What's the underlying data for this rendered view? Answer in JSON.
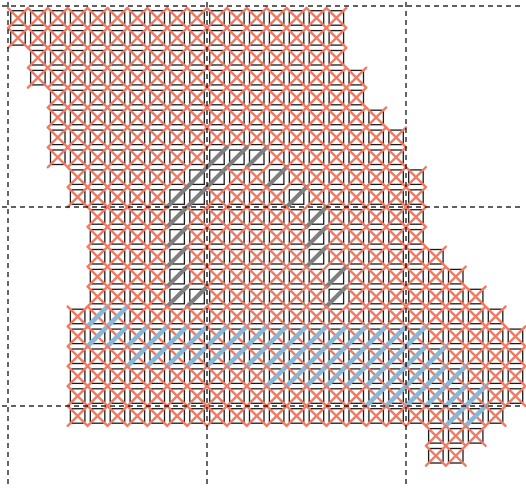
{
  "pattern": {
    "grid_lines": "dashed",
    "colors": {
      "background": "#ffffff",
      "cell_border": "#1a1a1a",
      "guide_line": "#000000",
      "stitch_main": "#f07a63",
      "stitch_shadow": "#7f7f7f",
      "stitch_river": "#8db6d4"
    },
    "legend": [],
    "rows": [
      {
        "row": 0,
        "start_col": 0,
        "end_col": 16
      },
      {
        "row": 1,
        "start_col": 0,
        "end_col": 16
      },
      {
        "row": 2,
        "start_col": 1,
        "end_col": 16
      },
      {
        "row": 3,
        "start_col": 1,
        "end_col": 17
      },
      {
        "row": 4,
        "start_col": 2,
        "end_col": 17
      },
      {
        "row": 5,
        "start_col": 2,
        "end_col": 18
      },
      {
        "row": 6,
        "start_col": 2,
        "end_col": 19
      },
      {
        "row": 7,
        "start_col": 2,
        "end_col": 19
      },
      {
        "row": 8,
        "start_col": 3,
        "end_col": 20
      },
      {
        "row": 9,
        "start_col": 3,
        "end_col": 20
      },
      {
        "row": 10,
        "start_col": 4,
        "end_col": 20
      },
      {
        "row": 11,
        "start_col": 4,
        "end_col": 20
      },
      {
        "row": 12,
        "start_col": 4,
        "end_col": 21
      },
      {
        "row": 13,
        "start_col": 4,
        "end_col": 22
      },
      {
        "row": 14,
        "start_col": 4,
        "end_col": 23
      },
      {
        "row": 15,
        "start_col": 3,
        "end_col": 24
      },
      {
        "row": 16,
        "start_col": 3,
        "end_col": 25
      },
      {
        "row": 17,
        "start_col": 3,
        "end_col": 25
      },
      {
        "row": 18,
        "start_col": 3,
        "end_col": 25
      },
      {
        "row": 19,
        "start_col": 3,
        "end_col": 25
      },
      {
        "row": 20,
        "start_col": 3,
        "end_col": 24
      },
      {
        "row": 21,
        "start_col": 21,
        "end_col": 23
      },
      {
        "row": 22,
        "start_col": 21,
        "end_col": 22
      }
    ],
    "shadow_stitches": [
      [
        7,
        10
      ],
      [
        7,
        11
      ],
      [
        7,
        12
      ],
      [
        8,
        9
      ],
      [
        8,
        10
      ],
      [
        8,
        13
      ],
      [
        9,
        8
      ],
      [
        9,
        9
      ],
      [
        9,
        14
      ],
      [
        10,
        8
      ],
      [
        10,
        15
      ],
      [
        11,
        8
      ],
      [
        11,
        15
      ],
      [
        12,
        8
      ],
      [
        12,
        15
      ],
      [
        13,
        8
      ],
      [
        13,
        16
      ],
      [
        14,
        8
      ],
      [
        14,
        9
      ],
      [
        14,
        16
      ]
    ],
    "river_stitches": [
      [
        15,
        4
      ],
      [
        15,
        5
      ],
      [
        16,
        4
      ],
      [
        16,
        5
      ],
      [
        16,
        6
      ],
      [
        16,
        7
      ],
      [
        16,
        8
      ],
      [
        16,
        9
      ],
      [
        16,
        10
      ],
      [
        16,
        11
      ],
      [
        16,
        12
      ],
      [
        16,
        13
      ],
      [
        16,
        14
      ],
      [
        16,
        15
      ],
      [
        16,
        16
      ],
      [
        16,
        17
      ],
      [
        16,
        18
      ],
      [
        16,
        19
      ],
      [
        16,
        20
      ],
      [
        17,
        6
      ],
      [
        17,
        7
      ],
      [
        17,
        8
      ],
      [
        17,
        9
      ],
      [
        17,
        10
      ],
      [
        17,
        11
      ],
      [
        17,
        12
      ],
      [
        17,
        13
      ],
      [
        17,
        14
      ],
      [
        17,
        15
      ],
      [
        17,
        16
      ],
      [
        17,
        17
      ],
      [
        17,
        18
      ],
      [
        17,
        19
      ],
      [
        17,
        20
      ],
      [
        17,
        21
      ],
      [
        18,
        13
      ],
      [
        18,
        14
      ],
      [
        18,
        15
      ],
      [
        18,
        16
      ],
      [
        18,
        17
      ],
      [
        18,
        18
      ],
      [
        18,
        19
      ],
      [
        18,
        20
      ],
      [
        18,
        21
      ],
      [
        18,
        22
      ],
      [
        19,
        18
      ],
      [
        19,
        19
      ],
      [
        19,
        20
      ],
      [
        19,
        21
      ],
      [
        19,
        22
      ],
      [
        19,
        23
      ],
      [
        20,
        22
      ],
      [
        20,
        23
      ]
    ]
  }
}
